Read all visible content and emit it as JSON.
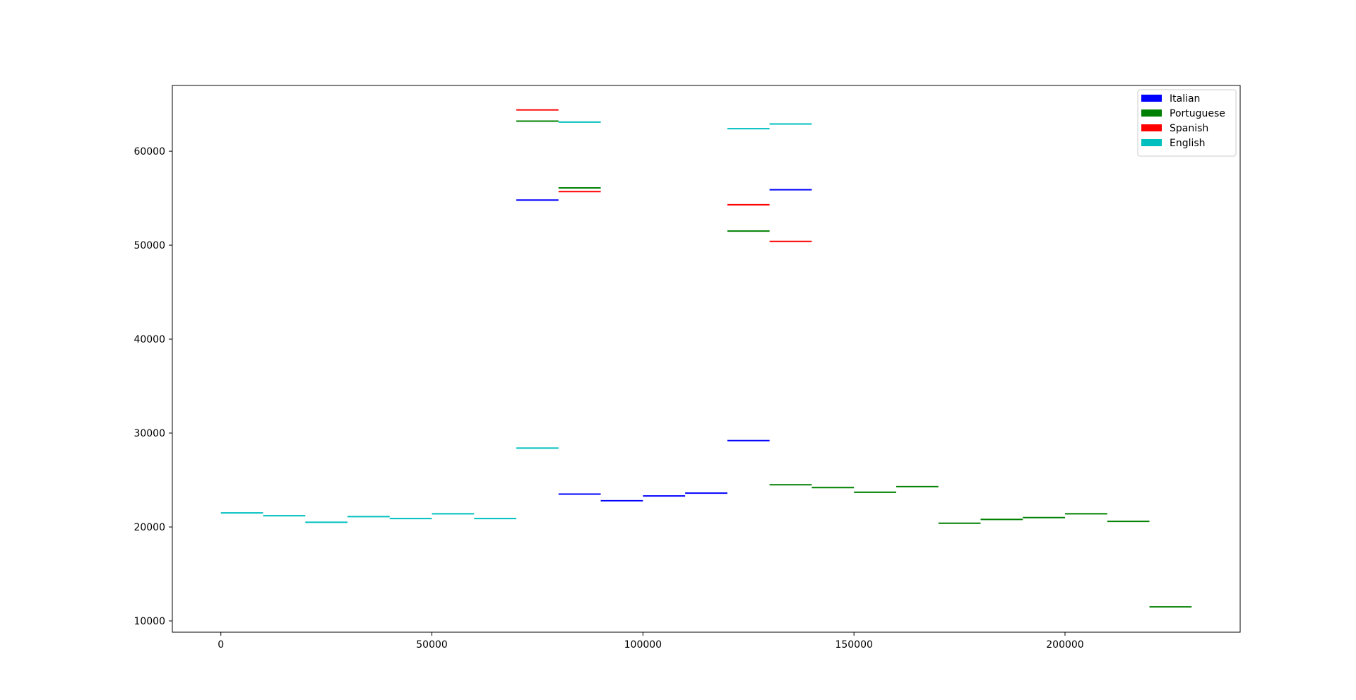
{
  "chart_data": {
    "type": "line",
    "title": "",
    "xlabel": "",
    "ylabel": "",
    "xlim": [
      -11500,
      241500
    ],
    "ylim": [
      8800,
      67000
    ],
    "xticks": [
      0,
      50000,
      100000,
      150000,
      200000
    ],
    "yticks": [
      10000,
      20000,
      30000,
      40000,
      50000,
      60000
    ],
    "grid": false,
    "legend_position": "top-right",
    "series": [
      {
        "name": "Italian",
        "color": "#0000ff",
        "segments": [
          {
            "x": [
              70000,
              80000
            ],
            "y": 54800
          },
          {
            "x": [
              80000,
              90000
            ],
            "y": 23500
          },
          {
            "x": [
              90000,
              100000
            ],
            "y": 22800
          },
          {
            "x": [
              100000,
              110000
            ],
            "y": 23300
          },
          {
            "x": [
              110000,
              120000
            ],
            "y": 23600
          },
          {
            "x": [
              120000,
              130000
            ],
            "y": 29200
          },
          {
            "x": [
              130000,
              140000
            ],
            "y": 55900
          }
        ]
      },
      {
        "name": "Portuguese",
        "color": "#008000",
        "segments": [
          {
            "x": [
              70000,
              80000
            ],
            "y": 63200
          },
          {
            "x": [
              80000,
              90000
            ],
            "y": 56100
          },
          {
            "x": [
              120000,
              130000
            ],
            "y": 51500
          },
          {
            "x": [
              130000,
              140000
            ],
            "y": 24500
          },
          {
            "x": [
              140000,
              150000
            ],
            "y": 24200
          },
          {
            "x": [
              150000,
              160000
            ],
            "y": 23700
          },
          {
            "x": [
              160000,
              170000
            ],
            "y": 24300
          },
          {
            "x": [
              170000,
              180000
            ],
            "y": 20400
          },
          {
            "x": [
              180000,
              190000
            ],
            "y": 20800
          },
          {
            "x": [
              190000,
              200000
            ],
            "y": 21000
          },
          {
            "x": [
              200000,
              210000
            ],
            "y": 21400
          },
          {
            "x": [
              210000,
              220000
            ],
            "y": 20600
          },
          {
            "x": [
              220000,
              230000
            ],
            "y": 11500
          }
        ]
      },
      {
        "name": "Spanish",
        "color": "#ff0000",
        "segments": [
          {
            "x": [
              70000,
              80000
            ],
            "y": 64400
          },
          {
            "x": [
              80000,
              90000
            ],
            "y": 55700
          },
          {
            "x": [
              120000,
              130000
            ],
            "y": 54300
          },
          {
            "x": [
              130000,
              140000
            ],
            "y": 50400
          }
        ]
      },
      {
        "name": "English",
        "color": "#00bfbf",
        "segments": [
          {
            "x": [
              0,
              10000
            ],
            "y": 21500
          },
          {
            "x": [
              10000,
              20000
            ],
            "y": 21200
          },
          {
            "x": [
              20000,
              30000
            ],
            "y": 20500
          },
          {
            "x": [
              30000,
              40000
            ],
            "y": 21100
          },
          {
            "x": [
              40000,
              50000
            ],
            "y": 20900
          },
          {
            "x": [
              50000,
              60000
            ],
            "y": 21400
          },
          {
            "x": [
              60000,
              70000
            ],
            "y": 20900
          },
          {
            "x": [
              70000,
              80000
            ],
            "y": 28400
          },
          {
            "x": [
              80000,
              90000
            ],
            "y": 63100
          },
          {
            "x": [
              120000,
              130000
            ],
            "y": 62400
          },
          {
            "x": [
              130000,
              140000
            ],
            "y": 62900
          }
        ]
      }
    ]
  }
}
